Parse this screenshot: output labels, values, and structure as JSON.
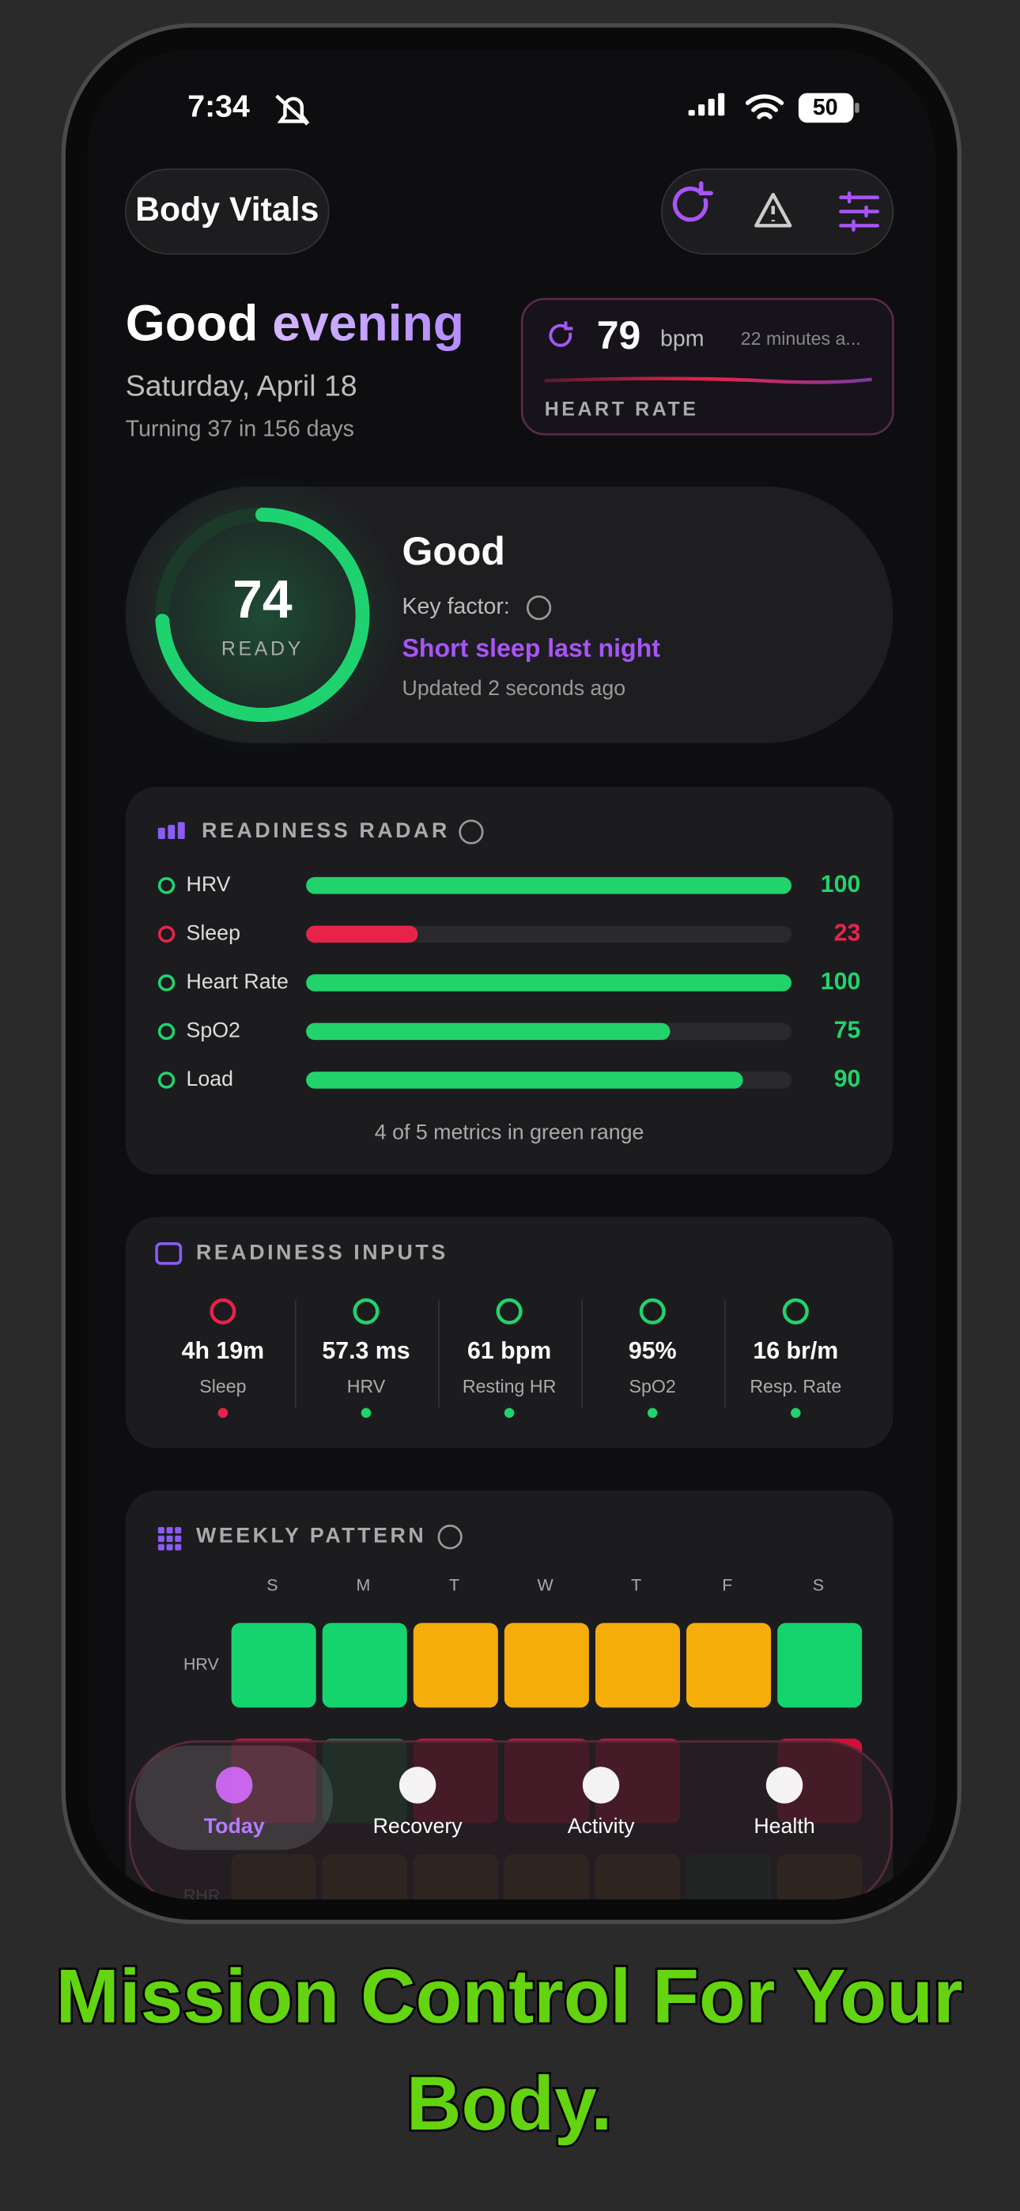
{
  "status_bar": {
    "time": "7:34",
    "battery": "50"
  },
  "header": {
    "title": "Body Vitals"
  },
  "greeting": {
    "prefix": "Good",
    "highlight": "evening",
    "date": "Saturday, April 18",
    "birthday": "Turning 37 in 156 days"
  },
  "heart_rate": {
    "value": 79,
    "unit": "bpm",
    "updated": "22 minutes a...",
    "label": "HEART RATE"
  },
  "readiness": {
    "score": 74,
    "range": [
      0,
      100
    ],
    "score_label": "READY",
    "status": "Good",
    "key_factor_label": "Key factor:",
    "key_factor": "Short sleep last night",
    "updated": "Updated 2 seconds ago"
  },
  "radar": {
    "title": "READINESS RADAR",
    "range": [
      0,
      100
    ],
    "items": [
      {
        "label": "HRV",
        "value": 100,
        "color": "#22d36b"
      },
      {
        "label": "Sleep",
        "value": 23,
        "color": "#e8234a"
      },
      {
        "label": "Heart Rate",
        "value": 100,
        "color": "#22d36b"
      },
      {
        "label": "SpO2",
        "value": 75,
        "color": "#22d36b"
      },
      {
        "label": "Load",
        "value": 90,
        "color": "#22d36b"
      }
    ],
    "footer": "4 of 5 metrics in green range"
  },
  "inputs": {
    "title": "READINESS INPUTS",
    "items": [
      {
        "value": "4h 19m",
        "label": "Sleep",
        "status_color": "#e8234a"
      },
      {
        "value": "57.3 ms",
        "label": "HRV",
        "status_color": "#22d36b"
      },
      {
        "value": "61 bpm",
        "label": "Resting HR",
        "status_color": "#22d36b"
      },
      {
        "value": "95%",
        "label": "SpO2",
        "status_color": "#22d36b"
      },
      {
        "value": "16 br/m",
        "label": "Resp. Rate",
        "status_color": "#22d36b"
      }
    ]
  },
  "weekly": {
    "title": "WEEKLY PATTERN",
    "days": [
      "S",
      "M",
      "T",
      "W",
      "T",
      "F",
      "S"
    ],
    "rows": [
      {
        "label": "HRV",
        "colors": [
          "#15d46e",
          "#15d46e",
          "#f5ad0a",
          "#f5ad0a",
          "#f5ad0a",
          "#f5ad0a",
          "#15d46e"
        ]
      },
      {
        "colors": [
          "#d0103a",
          "#0e7a38",
          "#d0103a",
          "#d0103a",
          "#d0103a",
          "#2a1a20",
          "#d0103a"
        ]
      },
      {
        "label": "RHR",
        "colors": [
          "#5a4210",
          "#5a4210",
          "#5a4210",
          "#5a4210",
          "#5a4210",
          "#0e4a26",
          "#5a4210"
        ]
      }
    ]
  },
  "nav": {
    "items": [
      {
        "label": "Today",
        "active": true
      },
      {
        "label": "Recovery"
      },
      {
        "label": "Activity"
      },
      {
        "label": "Health"
      }
    ]
  },
  "caption": [
    "Mission Control For Your",
    "Body."
  ]
}
